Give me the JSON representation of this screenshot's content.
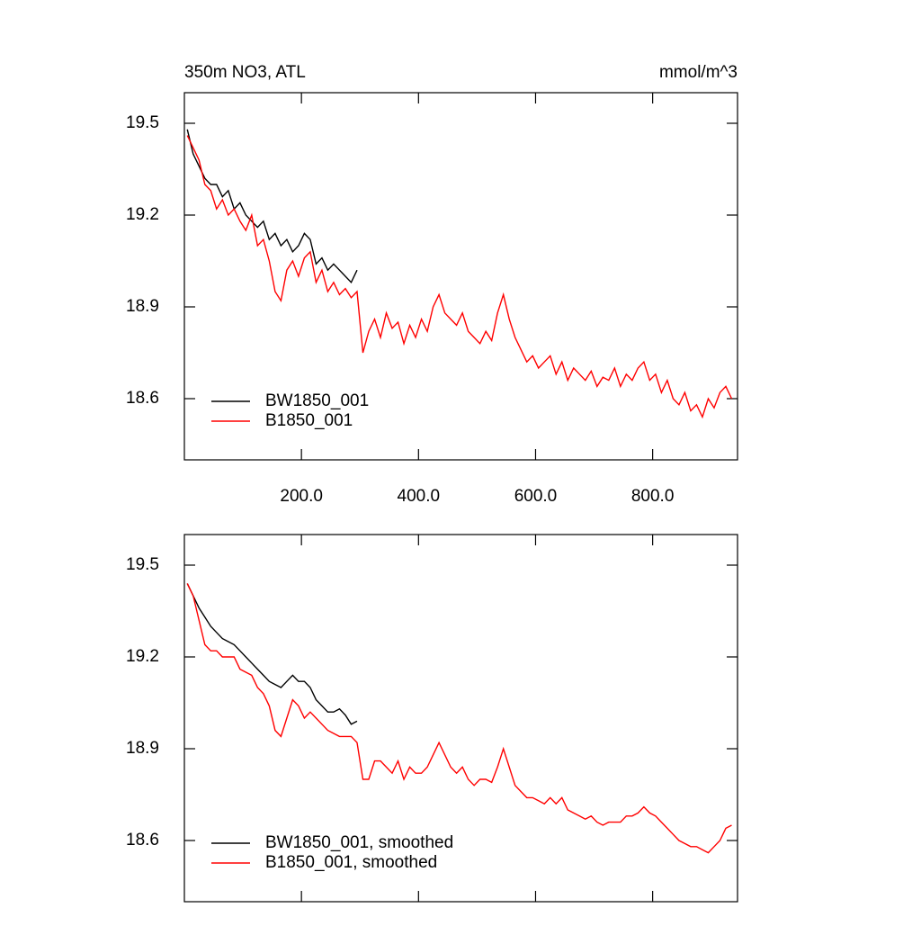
{
  "chart_data": [
    {
      "type": "line",
      "title": "350m NO3, ATL",
      "units": "mmol/m^3",
      "x": [
        5,
        15,
        25,
        35,
        45,
        55,
        65,
        75,
        85,
        95,
        105,
        115,
        125,
        135,
        145,
        155,
        165,
        175,
        185,
        195,
        205,
        215,
        225,
        235,
        245,
        255,
        265,
        275,
        285,
        295,
        305,
        315,
        325,
        335,
        345,
        355,
        365,
        375,
        385,
        395,
        405,
        415,
        425,
        435,
        445,
        455,
        465,
        475,
        485,
        495,
        505,
        515,
        525,
        535,
        545,
        555,
        565,
        575,
        585,
        595,
        605,
        615,
        625,
        635,
        645,
        655,
        665,
        675,
        685,
        695,
        705,
        715,
        725,
        735,
        745,
        755,
        765,
        775,
        785,
        795,
        805,
        815,
        825,
        835,
        845,
        855,
        865,
        875,
        885,
        895,
        905,
        915,
        925,
        935
      ],
      "series": [
        {
          "name": "BW1850_001",
          "color": "#000000",
          "values": [
            19.48,
            19.4,
            19.36,
            19.32,
            19.3,
            19.3,
            19.26,
            19.28,
            19.22,
            19.24,
            19.2,
            19.18,
            19.16,
            19.18,
            19.12,
            19.14,
            19.1,
            19.12,
            19.08,
            19.1,
            19.14,
            19.12,
            19.04,
            19.06,
            19.02,
            19.04,
            19.02,
            19.0,
            18.98,
            19.02,
            null,
            null,
            null,
            null,
            null,
            null,
            null,
            null,
            null,
            null,
            null,
            null,
            null,
            null,
            null,
            null,
            null,
            null,
            null,
            null,
            null,
            null,
            null,
            null,
            null,
            null,
            null,
            null,
            null,
            null,
            null,
            null,
            null,
            null,
            null,
            null,
            null,
            null,
            null,
            null,
            null,
            null,
            null,
            null,
            null,
            null,
            null,
            null,
            null,
            null,
            null,
            null,
            null,
            null,
            null,
            null,
            null,
            null,
            null,
            null,
            null,
            null,
            null,
            null
          ]
        },
        {
          "name": "B1850_001",
          "color": "#ff0000",
          "values": [
            19.46,
            19.42,
            19.38,
            19.3,
            19.28,
            19.22,
            19.25,
            19.2,
            19.22,
            19.18,
            19.15,
            19.2,
            19.1,
            19.12,
            19.05,
            18.95,
            18.92,
            19.02,
            19.05,
            19.0,
            19.06,
            19.08,
            18.98,
            19.02,
            18.95,
            18.98,
            18.94,
            18.96,
            18.93,
            18.95,
            18.75,
            18.82,
            18.86,
            18.8,
            18.88,
            18.83,
            18.85,
            18.78,
            18.84,
            18.8,
            18.86,
            18.82,
            18.9,
            18.94,
            18.88,
            18.86,
            18.84,
            18.88,
            18.82,
            18.8,
            18.78,
            18.82,
            18.79,
            18.88,
            18.94,
            18.86,
            18.8,
            18.76,
            18.72,
            18.74,
            18.7,
            18.72,
            18.74,
            18.68,
            18.72,
            18.66,
            18.7,
            18.68,
            18.66,
            18.69,
            18.64,
            18.67,
            18.66,
            18.7,
            18.64,
            18.68,
            18.66,
            18.7,
            18.72,
            18.66,
            18.68,
            18.62,
            18.66,
            18.6,
            18.58,
            18.62,
            18.56,
            18.58,
            18.54,
            18.6,
            18.57,
            18.62,
            18.64,
            18.6
          ]
        }
      ],
      "xlim": [
        0,
        945
      ],
      "ylim": [
        18.4,
        19.6
      ],
      "xticks": [
        {
          "value": 200,
          "label": "200.0"
        },
        {
          "value": 400,
          "label": "400.0"
        },
        {
          "value": 600,
          "label": "600.0"
        },
        {
          "value": 800,
          "label": "800.0"
        }
      ],
      "yticks": [
        18.6,
        18.9,
        19.2,
        19.5
      ],
      "legend": "lower left"
    },
    {
      "type": "line",
      "x": [
        5,
        15,
        25,
        35,
        45,
        55,
        65,
        75,
        85,
        95,
        105,
        115,
        125,
        135,
        145,
        155,
        165,
        175,
        185,
        195,
        205,
        215,
        225,
        235,
        245,
        255,
        265,
        275,
        285,
        295,
        305,
        315,
        325,
        335,
        345,
        355,
        365,
        375,
        385,
        395,
        405,
        415,
        425,
        435,
        445,
        455,
        465,
        475,
        485,
        495,
        505,
        515,
        525,
        535,
        545,
        555,
        565,
        575,
        585,
        595,
        605,
        615,
        625,
        635,
        645,
        655,
        665,
        675,
        685,
        695,
        705,
        715,
        725,
        735,
        745,
        755,
        765,
        775,
        785,
        795,
        805,
        815,
        825,
        835,
        845,
        855,
        865,
        875,
        885,
        895,
        905,
        915,
        925,
        935
      ],
      "series": [
        {
          "name": "BW1850_001, smoothed",
          "color": "#000000",
          "values": [
            19.44,
            19.4,
            19.36,
            19.33,
            19.3,
            19.28,
            19.26,
            19.25,
            19.24,
            19.22,
            19.2,
            19.18,
            19.16,
            19.14,
            19.12,
            19.11,
            19.1,
            19.12,
            19.14,
            19.12,
            19.12,
            19.1,
            19.06,
            19.04,
            19.02,
            19.02,
            19.03,
            19.01,
            18.98,
            18.99,
            null,
            null,
            null,
            null,
            null,
            null,
            null,
            null,
            null,
            null,
            null,
            null,
            null,
            null,
            null,
            null,
            null,
            null,
            null,
            null,
            null,
            null,
            null,
            null,
            null,
            null,
            null,
            null,
            null,
            null,
            null,
            null,
            null,
            null,
            null,
            null,
            null,
            null,
            null,
            null,
            null,
            null,
            null,
            null,
            null,
            null,
            null,
            null,
            null,
            null,
            null,
            null,
            null,
            null,
            null,
            null,
            null,
            null,
            null,
            null,
            null,
            null,
            null,
            null
          ]
        },
        {
          "name": "B1850_001, smoothed",
          "color": "#ff0000",
          "values": [
            19.44,
            19.4,
            19.32,
            19.24,
            19.22,
            19.22,
            19.2,
            19.2,
            19.2,
            19.16,
            19.15,
            19.14,
            19.1,
            19.08,
            19.04,
            18.96,
            18.94,
            19.0,
            19.06,
            19.04,
            19.0,
            19.02,
            19.0,
            18.98,
            18.96,
            18.95,
            18.94,
            18.94,
            18.94,
            18.92,
            18.8,
            18.8,
            18.86,
            18.86,
            18.84,
            18.82,
            18.86,
            18.8,
            18.84,
            18.82,
            18.82,
            18.84,
            18.88,
            18.92,
            18.88,
            18.84,
            18.82,
            18.84,
            18.8,
            18.78,
            18.8,
            18.8,
            18.79,
            18.84,
            18.9,
            18.84,
            18.78,
            18.76,
            18.74,
            18.74,
            18.73,
            18.72,
            18.74,
            18.72,
            18.74,
            18.7,
            18.69,
            18.68,
            18.67,
            18.68,
            18.66,
            18.65,
            18.66,
            18.66,
            18.66,
            18.68,
            18.68,
            18.69,
            18.71,
            18.69,
            18.68,
            18.66,
            18.64,
            18.62,
            18.6,
            18.59,
            18.58,
            18.58,
            18.57,
            18.56,
            18.58,
            18.6,
            18.64,
            18.65
          ]
        }
      ],
      "xlim": [
        0,
        945
      ],
      "ylim": [
        18.4,
        19.6
      ],
      "xticks": [
        200,
        400,
        600,
        800
      ],
      "xtick_labels": false,
      "yticks": [
        18.6,
        18.9,
        19.2,
        19.5
      ],
      "legend": "lower left"
    }
  ]
}
